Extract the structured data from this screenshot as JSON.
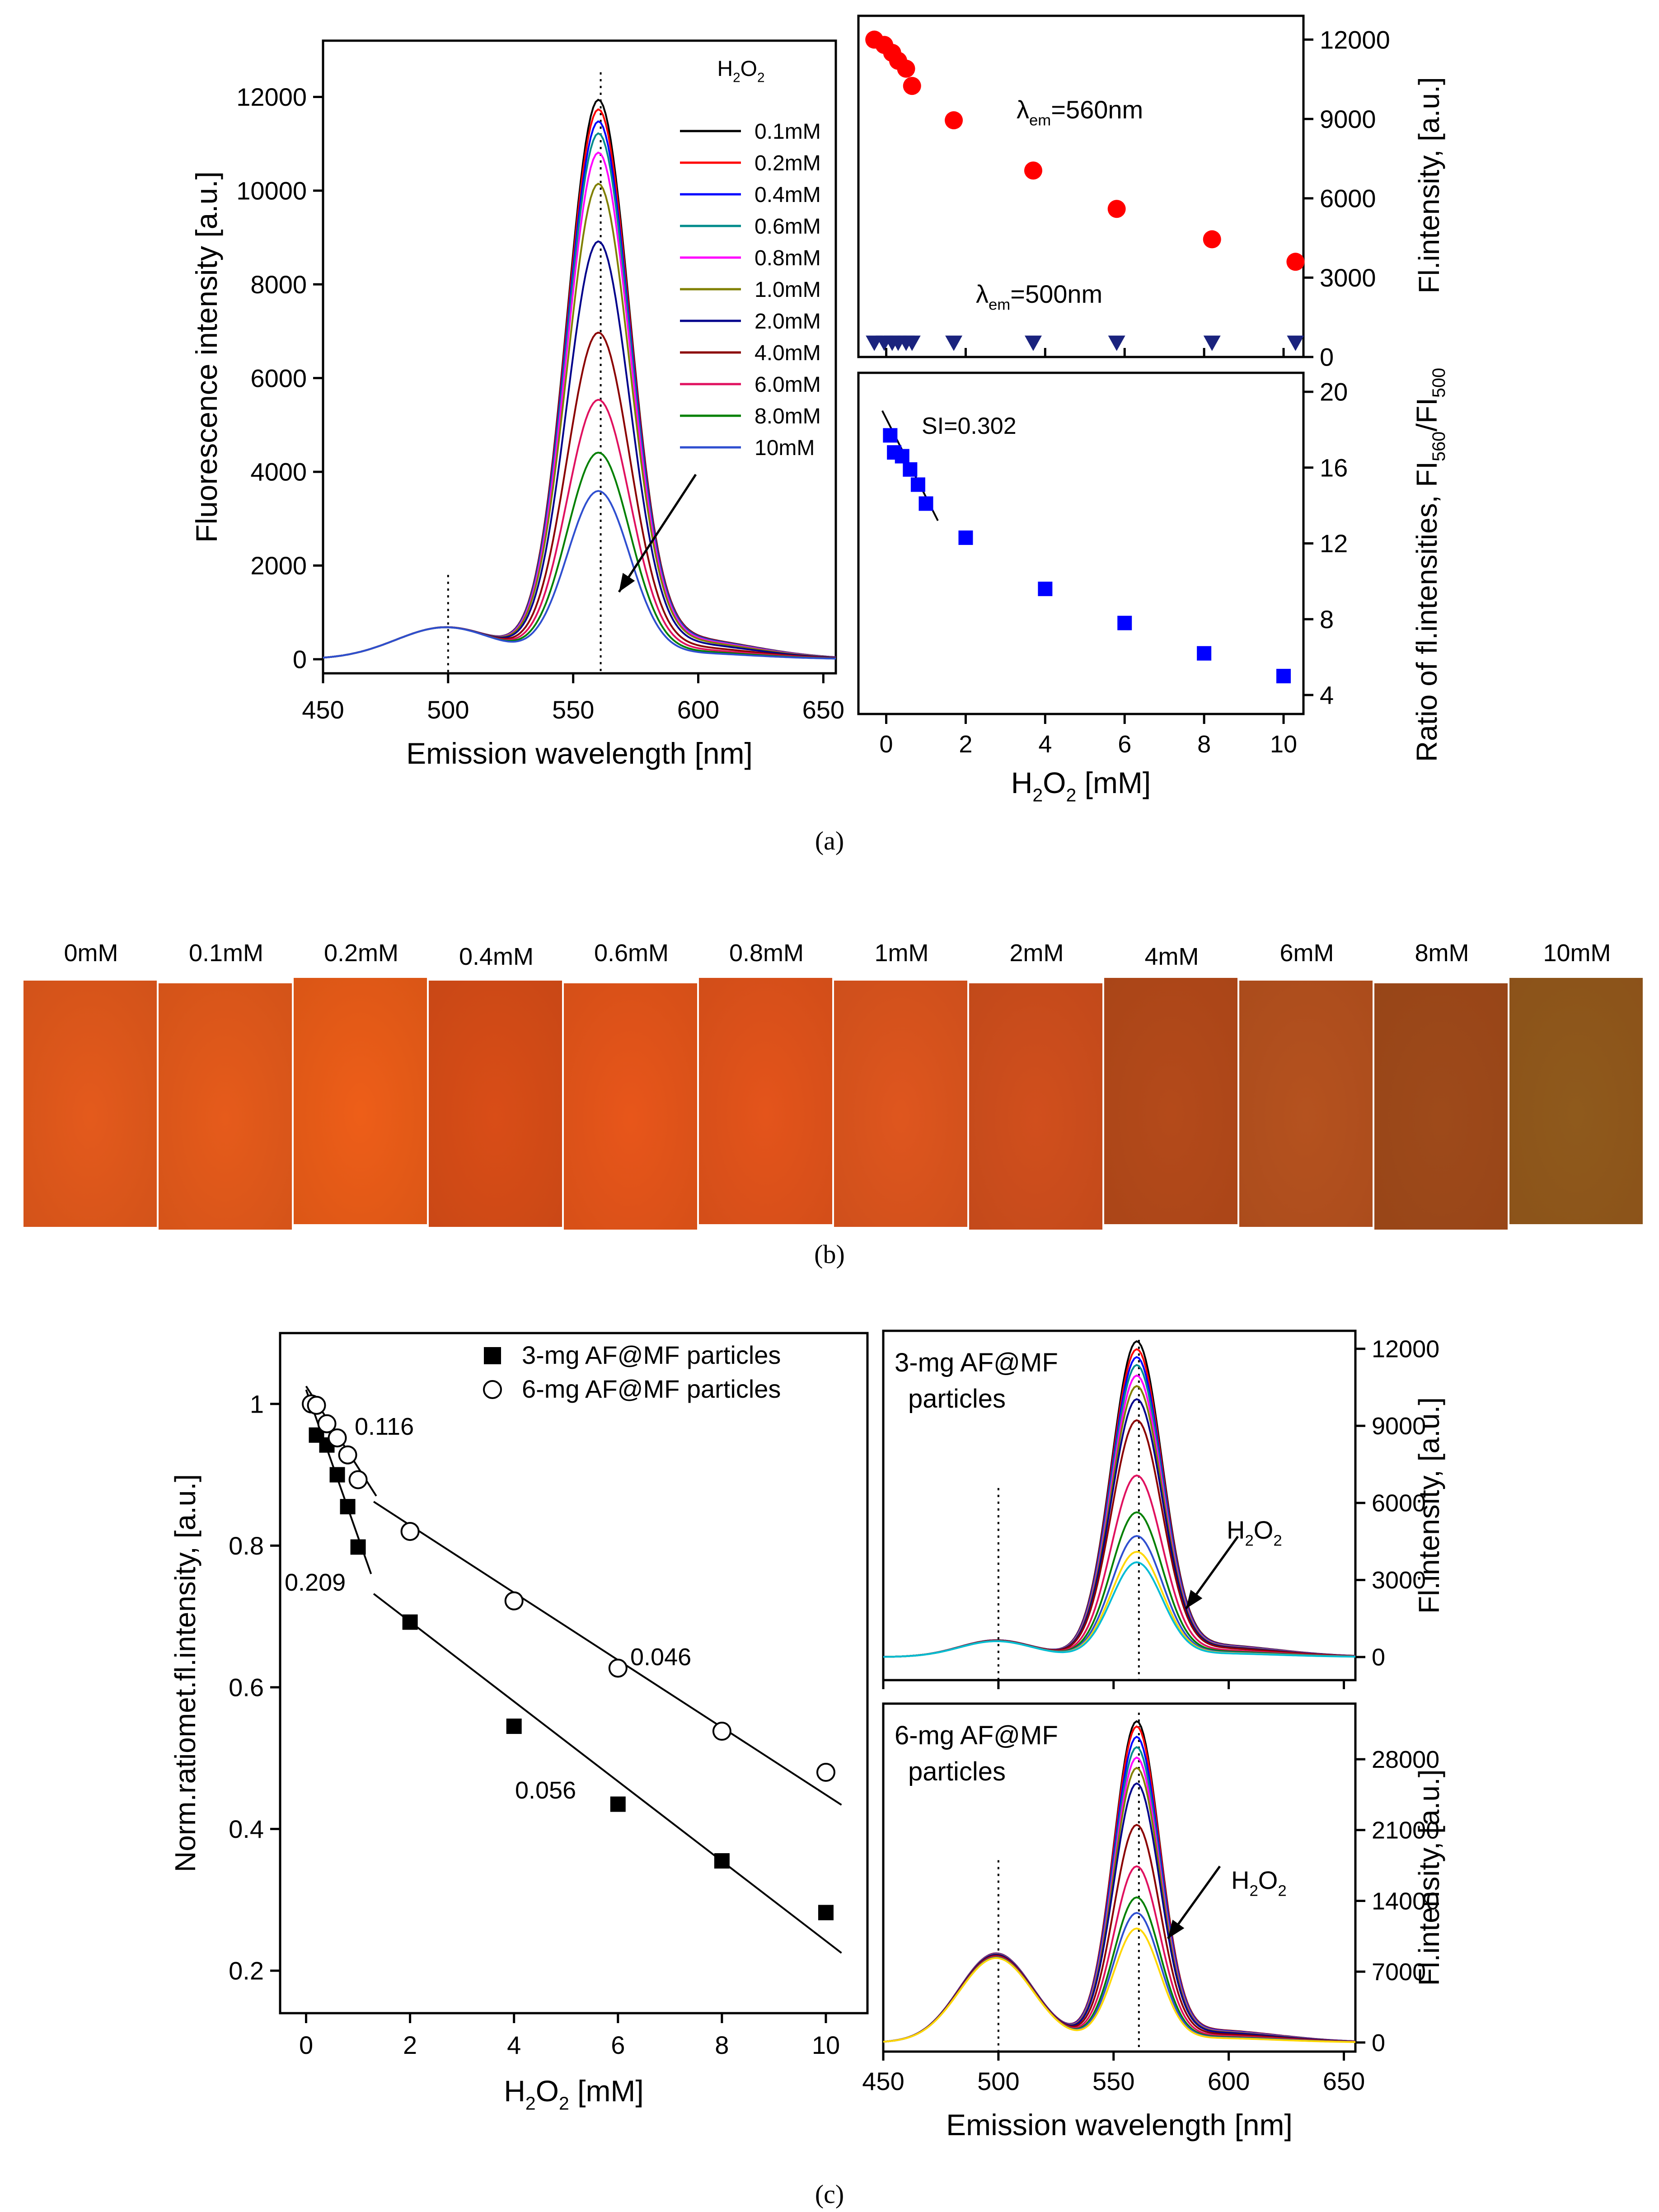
{
  "panel_labels": {
    "a": "(a)",
    "b": "(b)",
    "c": "(c)"
  },
  "chart_data": [
    {
      "id": "a_spectra",
      "type": "line",
      "xlabel": "Emission wavelength [nm]",
      "ylabel": "Fluorescence intensity [a.u.]",
      "xlim": [
        450,
        655
      ],
      "ylim": [
        -300,
        13200
      ],
      "xticks": [
        450,
        500,
        550,
        600,
        650
      ],
      "yticks": [
        0,
        2000,
        4000,
        6000,
        8000,
        10000,
        12000
      ],
      "legend_title": "H2O2",
      "series": [
        {
          "name": "0.1mM",
          "color": "#000000",
          "peak": 11650
        },
        {
          "name": "0.2mM",
          "color": "#ff0000",
          "peak": 11450
        },
        {
          "name": "0.4mM",
          "color": "#0000ff",
          "peak": 11200
        },
        {
          "name": "0.6mM",
          "color": "#008b8b",
          "peak": 10950
        },
        {
          "name": "0.8mM",
          "color": "#ff00ff",
          "peak": 10550
        },
        {
          "name": "1.0mM",
          "color": "#808000",
          "peak": 9900
        },
        {
          "name": "2.0mM",
          "color": "#00008b",
          "peak": 8700
        },
        {
          "name": "4.0mM",
          "color": "#8b0000",
          "peak": 6800
        },
        {
          "name": "6.0mM",
          "color": "#e0115f",
          "peak": 5400
        },
        {
          "name": "8.0mM",
          "color": "#008000",
          "peak": 4300
        },
        {
          "name": "10mM",
          "color": "#2f4fd0",
          "peak": 3500
        }
      ],
      "shoulder_500nm": 680,
      "guide_lines": [
        500,
        561
      ]
    },
    {
      "id": "a_top",
      "type": "scatter",
      "ylabel": "Fl.intensity, [a.u.]",
      "xlim": [
        -0.7,
        10.5
      ],
      "ylim": [
        0,
        12900
      ],
      "yticks": [
        0,
        3000,
        6000,
        9000,
        12000
      ],
      "series": [
        {
          "name": "λem=560nm",
          "marker": "circle",
          "color": "#ff0000",
          "x": [
            -0.3,
            -0.05,
            0.15,
            0.3,
            0.5,
            0.65,
            1.7,
            3.7,
            5.8,
            8.2,
            10.3
          ],
          "y": [
            12000,
            11800,
            11500,
            11200,
            10900,
            10250,
            8950,
            7050,
            5600,
            4450,
            3600
          ]
        },
        {
          "name": "λem=500nm",
          "marker": "triangle-down",
          "color": "#1a237e",
          "x": [
            -0.3,
            -0.05,
            0.15,
            0.3,
            0.5,
            0.65,
            1.7,
            3.7,
            5.8,
            8.2,
            10.3
          ],
          "y": [
            550,
            550,
            550,
            550,
            550,
            550,
            550,
            550,
            550,
            550,
            550
          ]
        }
      ],
      "annotations": [
        "λem=560nm",
        "λem=500nm"
      ]
    },
    {
      "id": "a_bottom",
      "type": "scatter",
      "xlabel": "H2O2 [mM]",
      "ylabel": "Ratio of fl.intensities, FI560/FI500",
      "xlim": [
        -0.7,
        10.5
      ],
      "ylim": [
        3,
        21
      ],
      "xticks": [
        0,
        2,
        4,
        6,
        8,
        10
      ],
      "yticks": [
        4,
        8,
        12,
        16,
        20
      ],
      "series": [
        {
          "name": "ratio",
          "marker": "square",
          "color": "#0000ff",
          "x": [
            0.1,
            0.2,
            0.4,
            0.6,
            0.8,
            1.0,
            2.0,
            4.0,
            6.0,
            8.0,
            10.0
          ],
          "y": [
            17.7,
            16.8,
            16.6,
            15.9,
            15.1,
            14.1,
            12.3,
            9.6,
            7.8,
            6.2,
            5.0
          ]
        }
      ],
      "fit_line": {
        "x": [
          -0.1,
          1.3
        ],
        "y": [
          19.0,
          13.2
        ]
      },
      "annotation": "SI=0.302"
    },
    {
      "id": "c_left",
      "type": "scatter",
      "xlabel": "H2O2 [mM]",
      "ylabel": "Norm.ratiomet.fl.intensity, [a.u.]",
      "xlim": [
        -0.5,
        10.8
      ],
      "ylim": [
        0.14,
        1.1
      ],
      "xticks": [
        0,
        2,
        4,
        6,
        8,
        10
      ],
      "yticks": [
        0.2,
        0.4,
        0.6,
        0.8,
        1.0
      ],
      "series": [
        {
          "name": "3-mg AF@MF particles",
          "marker": "square-filled",
          "x": [
            0.2,
            0.4,
            0.6,
            0.8,
            1.0,
            2.0,
            4.0,
            6.0,
            8.0,
            10.0
          ],
          "y": [
            0.956,
            0.942,
            0.9,
            0.855,
            0.798,
            0.692,
            0.545,
            0.435,
            0.355,
            0.282
          ]
        },
        {
          "name": "6-mg AF@MF particles",
          "marker": "circle-open",
          "x": [
            0.1,
            0.2,
            0.4,
            0.6,
            0.8,
            1.0,
            2.0,
            4.0,
            6.0,
            8.0,
            10.0
          ],
          "y": [
            1.0,
            0.998,
            0.972,
            0.952,
            0.928,
            0.893,
            0.82,
            0.722,
            0.627,
            0.538,
            0.48
          ]
        }
      ],
      "fit_lines": [
        {
          "x": [
            0.0,
            1.25
          ],
          "y": [
            1.02,
            0.76
          ]
        },
        {
          "x": [
            0.0,
            1.35
          ],
          "y": [
            1.025,
            0.87
          ]
        },
        {
          "x": [
            1.3,
            10.3
          ],
          "y": [
            0.862,
            0.434
          ]
        },
        {
          "x": [
            1.3,
            10.3
          ],
          "y": [
            0.732,
            0.225
          ]
        }
      ],
      "slope_labels": [
        "0.116",
        "0.209",
        "0.046",
        "0.056"
      ]
    },
    {
      "id": "c_top",
      "type": "line",
      "ylabel": "Fl.intensity, [a.u.]",
      "ylim": [
        -900,
        12700
      ],
      "xlim": [
        450,
        655
      ],
      "yticks": [
        0,
        3000,
        6000,
        9000,
        12000
      ],
      "annotation": "3-mg AF@MF particles",
      "annotation_line1": "3-mg AF@MF",
      "annotation_line2": "particles",
      "arrow_label": "H2O2",
      "peaks": [
        12000,
        11700,
        11400,
        11100,
        10700,
        10300,
        9800,
        9000,
        6900,
        5500,
        4600,
        4000,
        3600
      ],
      "shoulder": 650
    },
    {
      "id": "c_bottom",
      "type": "line",
      "xlabel": "Emission wavelength [nm]",
      "ylabel": "Fl.intensity, [a.u.]",
      "xlim": [
        450,
        655
      ],
      "ylim": [
        -900,
        33500
      ],
      "xticks": [
        450,
        500,
        550,
        600,
        650
      ],
      "yticks": [
        0,
        7000,
        14000,
        21000,
        28000
      ],
      "annotation": "6-mg AF@MF particles",
      "annotation_line1": "6-mg AF@MF",
      "annotation_line2": "particles",
      "arrow_label": "H2O2",
      "peaks": [
        31000,
        30500,
        29500,
        28500,
        27500,
        26500,
        25000,
        21000,
        17000,
        14000,
        12500,
        11000
      ],
      "shoulder": 8800
    }
  ],
  "photo_strip": {
    "labels": [
      "0mM",
      "0.1mM",
      "0.2mM",
      "0.4mM",
      "0.6mM",
      "0.8mM",
      "1mM",
      "2mM",
      "4mM",
      "6mM",
      "8mM",
      "10mM"
    ],
    "colors": [
      "#e45a1c",
      "#e65b1b",
      "#ee5e18",
      "#d94d17",
      "#e8561a",
      "#e4541b",
      "#df561e",
      "#d14f1d",
      "#b44a1a",
      "#b5521f",
      "#9e4a1a",
      "#8f5a1c"
    ]
  },
  "palette": [
    "#000000",
    "#ff0000",
    "#0000ff",
    "#008b8b",
    "#ff00ff",
    "#808000",
    "#00008b",
    "#8b0000",
    "#e0115f",
    "#008000",
    "#2f4fd0",
    "#ffd700",
    "#00bcd4"
  ]
}
